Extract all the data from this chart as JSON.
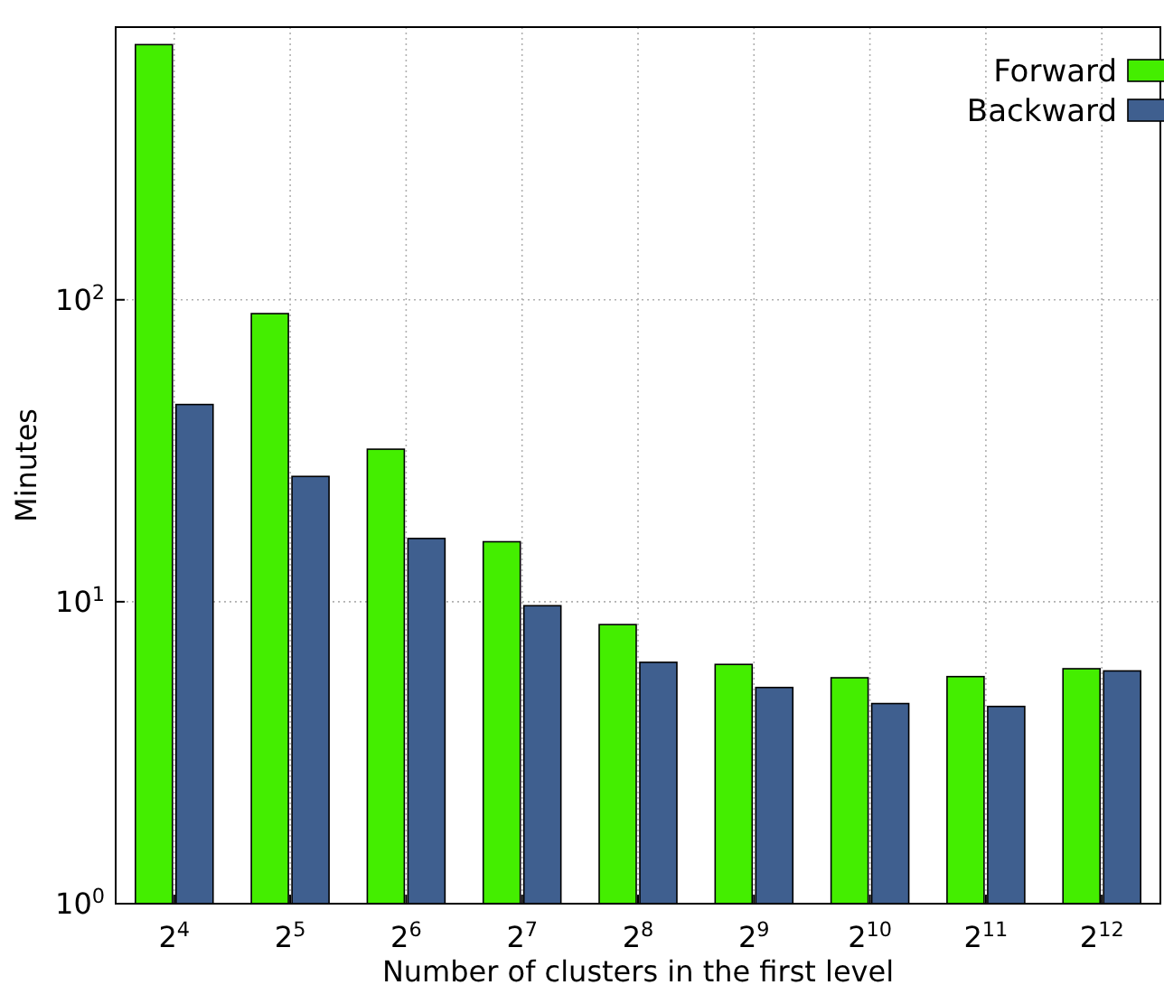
{
  "chart_data": {
    "type": "bar",
    "xlabel": "Number of clusters in the first level",
    "ylabel": "Minutes",
    "categories": [
      "2$^{4}$",
      "2$^{5}$",
      "2$^{6}$",
      "2$^{7}$",
      "2$^{8}$",
      "2$^{9}$",
      "2$^{10}$",
      "2$^{11}$",
      "2$^{12}$"
    ],
    "series": [
      {
        "name": "Forward",
        "color": "#44ee00",
        "values": [
          700,
          90,
          32,
          15.8,
          8.4,
          6.2,
          5.6,
          5.65,
          6.0
        ]
      },
      {
        "name": "Backward",
        "color": "#3f5f8f",
        "values": [
          45,
          26,
          16.2,
          9.7,
          6.3,
          5.2,
          4.6,
          4.5,
          5.9
        ]
      }
    ],
    "log": "y",
    "ylim": [
      1,
      800
    ],
    "yticks": [
      {
        "value": 1,
        "label": "10$^{0}$"
      },
      {
        "value": 10,
        "label": "10$^{1}$"
      },
      {
        "value": 100,
        "label": "10$^{2}$"
      }
    ],
    "grid": true,
    "legend": "top right"
  }
}
